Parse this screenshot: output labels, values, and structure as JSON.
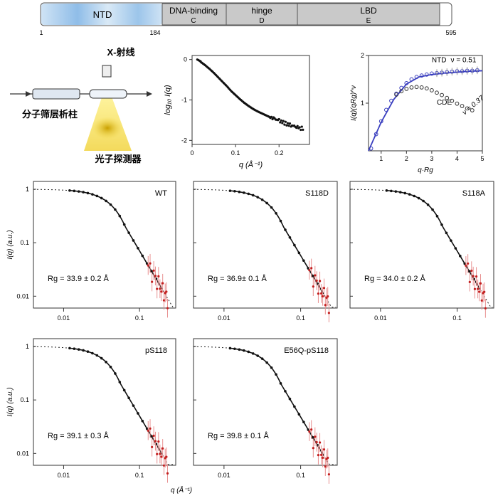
{
  "domain_bar": {
    "segments": [
      {
        "label": "NTD",
        "sub": ""
      },
      {
        "label": "DNA-binding",
        "sub": "C"
      },
      {
        "label": "hinge",
        "sub": "D"
      },
      {
        "label": "LBD",
        "sub": "E"
      }
    ],
    "ticks": [
      "1",
      "184",
      "595"
    ]
  },
  "schematic": {
    "xray_label": "X-射线",
    "column_label": "分子筛层析柱",
    "detector_label": "光子探测器"
  },
  "chart_data": [
    {
      "id": "saxs-log",
      "type": "scatter",
      "ylabel": "log₁₀ I(q)",
      "xlabel": "q (Å⁻¹)",
      "xlim": [
        0,
        0.27
      ],
      "ylim": [
        -2.1,
        0.1
      ],
      "xticks": [
        "0",
        "0.1",
        "0.2"
      ],
      "yticks": [
        "0",
        "-1",
        "-2"
      ],
      "x": [
        0.012,
        0.02,
        0.03,
        0.04,
        0.05,
        0.06,
        0.07,
        0.08,
        0.09,
        0.1,
        0.11,
        0.12,
        0.13,
        0.14,
        0.15,
        0.16,
        0.17,
        0.18,
        0.19,
        0.2,
        0.21,
        0.22,
        0.23,
        0.24,
        0.25
      ],
      "y": [
        0.0,
        -0.06,
        -0.14,
        -0.23,
        -0.33,
        -0.44,
        -0.55,
        -0.66,
        -0.78,
        -0.88,
        -0.98,
        -1.07,
        -1.15,
        -1.22,
        -1.28,
        -1.33,
        -1.38,
        -1.43,
        -1.47,
        -1.51,
        -1.56,
        -1.6,
        -1.63,
        -1.66,
        -1.7
      ]
    },
    {
      "id": "kratky",
      "type": "scatter",
      "ylabel": "I(q)(qRg)^ν",
      "xlabel": "q·Rg",
      "xlim": [
        0.5,
        5
      ],
      "ylim": [
        0,
        2
      ],
      "xticks": [
        "1",
        "2",
        "3",
        "4",
        "5"
      ],
      "yticks": [
        "1",
        "2"
      ],
      "annotations": [
        "NTD",
        "ν = 0.51",
        "CDE",
        "ν = 0.37"
      ],
      "series": [
        {
          "name": "NTD",
          "color": "#3a3fbf",
          "x": [
            0.6,
            0.8,
            1.0,
            1.2,
            1.4,
            1.6,
            1.8,
            2.0,
            2.2,
            2.4,
            2.6,
            2.8,
            3.0,
            3.2,
            3.4,
            3.6,
            3.8,
            4.0,
            4.2,
            4.4,
            4.6,
            4.8
          ],
          "y": [
            0.05,
            0.35,
            0.62,
            0.86,
            1.05,
            1.2,
            1.32,
            1.42,
            1.5,
            1.55,
            1.58,
            1.6,
            1.62,
            1.63,
            1.64,
            1.65,
            1.66,
            1.67,
            1.67,
            1.68,
            1.68,
            1.69
          ]
        },
        {
          "name": "CDE",
          "color": "#333333",
          "x": [
            1.6,
            1.8,
            2.0,
            2.2,
            2.4,
            2.6,
            2.8,
            3.0,
            3.2,
            3.4,
            3.6,
            3.8,
            4.0,
            4.2,
            4.4,
            4.6
          ],
          "y": [
            1.18,
            1.25,
            1.3,
            1.33,
            1.34,
            1.33,
            1.31,
            1.27,
            1.22,
            1.17,
            1.11,
            1.05,
            0.99,
            0.94,
            0.89,
            0.85
          ]
        },
        {
          "name": "fit",
          "color": "#3a3fbf",
          "x": [
            0.5,
            1,
            1.5,
            2,
            2.5,
            3,
            3.5,
            4,
            4.5,
            5
          ],
          "y": [
            0.0,
            0.6,
            1.08,
            1.4,
            1.55,
            1.6,
            1.63,
            1.65,
            1.67,
            1.68
          ]
        }
      ]
    },
    {
      "id": "saxs-wt",
      "type": "scatter",
      "label": "WT",
      "rg_text": "Rg = 33.9 ± 0.2 Å",
      "rg": 33.9,
      "xlim": [
        0.004,
        0.3
      ],
      "ylim": [
        0.006,
        1.4
      ],
      "xticks": [
        "0.01",
        "0.1"
      ],
      "yticks": [
        "1",
        "0.1",
        "0.01"
      ],
      "ylabel": "I(q) (a.u.)"
    },
    {
      "id": "saxs-s118d",
      "type": "scatter",
      "label": "S118D",
      "rg_text": "Rg = 36.9± 0.1 Å",
      "rg": 36.9,
      "xlim": [
        0.004,
        0.3
      ],
      "ylim": [
        0.006,
        1.4
      ],
      "xticks": [
        "0.01",
        "0.1"
      ],
      "yticks": []
    },
    {
      "id": "saxs-s118a",
      "type": "scatter",
      "label": "S118A",
      "rg_text": "Rg = 34.0 ± 0.2 Å",
      "rg": 34.0,
      "xlim": [
        0.004,
        0.3
      ],
      "ylim": [
        0.006,
        1.4
      ],
      "xticks": [
        "0.01",
        "0.1"
      ],
      "yticks": []
    },
    {
      "id": "saxs-ps118",
      "type": "scatter",
      "label": "pS118",
      "rg_text": "Rg = 39.1 ± 0.3 Å",
      "rg": 39.1,
      "xlim": [
        0.004,
        0.3
      ],
      "ylim": [
        0.006,
        1.4
      ],
      "xticks": [
        "0.01",
        "0.1"
      ],
      "yticks": [
        "1",
        "0.1",
        "0.01"
      ],
      "ylabel": "I(q) (a.u.)",
      "xlabel": "q (Å⁻¹)"
    },
    {
      "id": "saxs-e56q",
      "type": "scatter",
      "label": "E56Q-pS118",
      "rg_text": "Rg = 39.8 ± 0.1 Å",
      "rg": 39.8,
      "xlim": [
        0.004,
        0.3
      ],
      "ylim": [
        0.006,
        1.4
      ],
      "xticks": [
        "0.01",
        "0.1"
      ],
      "yticks": []
    }
  ]
}
